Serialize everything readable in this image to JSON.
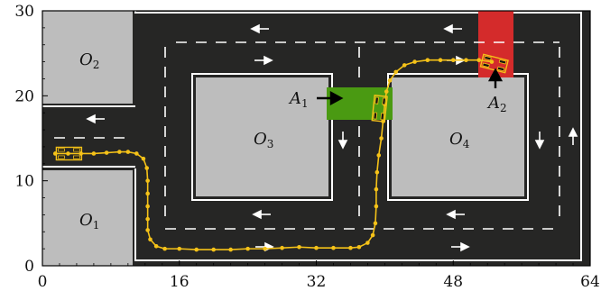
{
  "axes": {
    "x_ticks": [
      {
        "value": 0,
        "label": "0"
      },
      {
        "value": 16,
        "label": "16"
      },
      {
        "value": 32,
        "label": "32"
      },
      {
        "value": 48,
        "label": "48"
      },
      {
        "value": 64,
        "label": "64"
      }
    ],
    "y_ticks": [
      {
        "value": 0,
        "label": "0"
      },
      {
        "value": 10,
        "label": "10"
      },
      {
        "value": 20,
        "label": "20"
      },
      {
        "value": 30,
        "label": "30"
      }
    ],
    "xlim": [
      0,
      64
    ],
    "ylim": [
      0,
      30
    ]
  },
  "obstacles": [
    {
      "id": "O1",
      "base": "O",
      "sub": "1"
    },
    {
      "id": "O2",
      "base": "O",
      "sub": "2"
    },
    {
      "id": "O3",
      "base": "O",
      "sub": "3"
    },
    {
      "id": "O4",
      "base": "O",
      "sub": "4"
    }
  ],
  "areas": [
    {
      "id": "A1",
      "base": "A",
      "sub": "1",
      "color": "#4a9a12"
    },
    {
      "id": "A2",
      "base": "A",
      "sub": "2",
      "color": "#d42b2b"
    }
  ],
  "colors": {
    "road": "#262625",
    "obstacle": "#bdbdbd",
    "lane_marking": "#ffffff",
    "trajectory": "#f5c218",
    "vehicle_outline": "#f5c218"
  },
  "trajectory": {
    "points": [
      [
        1.5,
        13.2
      ],
      [
        3,
        13.2
      ],
      [
        4.5,
        13.2
      ],
      [
        6,
        13.2
      ],
      [
        7.5,
        13.3
      ],
      [
        9,
        13.4
      ],
      [
        10,
        13.4
      ],
      [
        11,
        13.2
      ],
      [
        11.8,
        12.6
      ],
      [
        12.2,
        11.5
      ],
      [
        12.3,
        10
      ],
      [
        12.3,
        8.5
      ],
      [
        12.3,
        7
      ],
      [
        12.3,
        5.5
      ],
      [
        12.3,
        4.2
      ],
      [
        12.6,
        3.1
      ],
      [
        13.3,
        2.3
      ],
      [
        14.3,
        2
      ],
      [
        16,
        2
      ],
      [
        18,
        1.9
      ],
      [
        20,
        1.9
      ],
      [
        22,
        1.9
      ],
      [
        24,
        2
      ],
      [
        26,
        2
      ],
      [
        28,
        2.1
      ],
      [
        30,
        2.2
      ],
      [
        32,
        2.1
      ],
      [
        34,
        2.1
      ],
      [
        36,
        2.1
      ],
      [
        37,
        2.2
      ],
      [
        38,
        2.7
      ],
      [
        38.6,
        3.6
      ],
      [
        38.9,
        5
      ],
      [
        39,
        7
      ],
      [
        39,
        9
      ],
      [
        39.1,
        11
      ],
      [
        39.3,
        13
      ],
      [
        39.6,
        15
      ],
      [
        39.8,
        17
      ],
      [
        40,
        19
      ],
      [
        40.2,
        20.5
      ],
      [
        40.6,
        21.8
      ],
      [
        41.3,
        22.8
      ],
      [
        42.3,
        23.6
      ],
      [
        43.5,
        24
      ],
      [
        45,
        24.2
      ],
      [
        46.5,
        24.2
      ],
      [
        48,
        24.2
      ],
      [
        49.5,
        24.2
      ],
      [
        51,
        24.2
      ],
      [
        52.5,
        24
      ]
    ]
  },
  "vehicles": [
    {
      "id": "start",
      "x": 3.1,
      "y": 13.2,
      "angle": 0
    },
    {
      "id": "mid",
      "x": 39.4,
      "y": 18.5,
      "angle": 84
    },
    {
      "id": "end",
      "x": 52.8,
      "y": 23.8,
      "angle": -14
    }
  ]
}
